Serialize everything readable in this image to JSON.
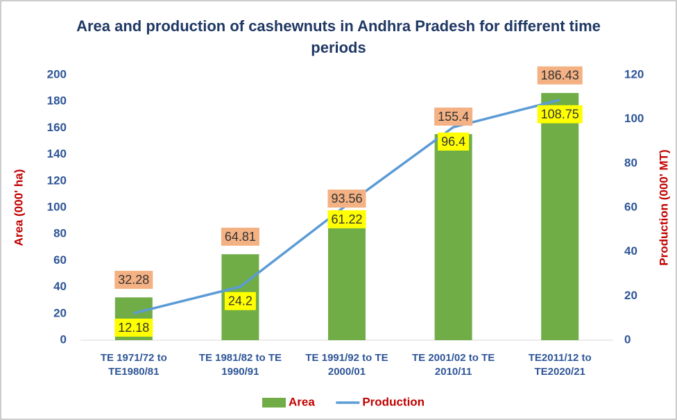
{
  "chart_data": {
    "type": "bar-line",
    "title": "Area and production of cashewnuts in Andhra Pradesh for different time periods",
    "categories": [
      "TE 1971/72 to\nTE1980/81",
      "TE 1981/82 to TE\n1990/91",
      "TE 1991/92 to TE\n2000/01",
      "TE 2001/02 to TE\n2010/11",
      "TE2011/12 to\nTE2020/21"
    ],
    "y_label": "Area (000' ha)",
    "y2_label": "Production (000' MT)",
    "ylim": [
      0,
      200
    ],
    "yticks": [
      0,
      20,
      40,
      60,
      80,
      100,
      120,
      140,
      160,
      180,
      200
    ],
    "y2lim": [
      0,
      120
    ],
    "y2ticks": [
      0,
      20,
      40,
      60,
      80,
      100,
      120
    ],
    "legend": "bottom",
    "series": [
      {
        "name": "Area",
        "type": "bar",
        "color": "#70ad47",
        "label_color": "#f4b183",
        "axis": "y",
        "values": [
          32.28,
          64.81,
          93.56,
          155.4,
          186.43
        ]
      },
      {
        "name": "Production",
        "type": "line",
        "color": "#5b9bd5",
        "label_color": "#ffff00",
        "axis": "y2",
        "values": [
          12.18,
          24.2,
          61.22,
          96.4,
          108.75
        ]
      }
    ]
  }
}
